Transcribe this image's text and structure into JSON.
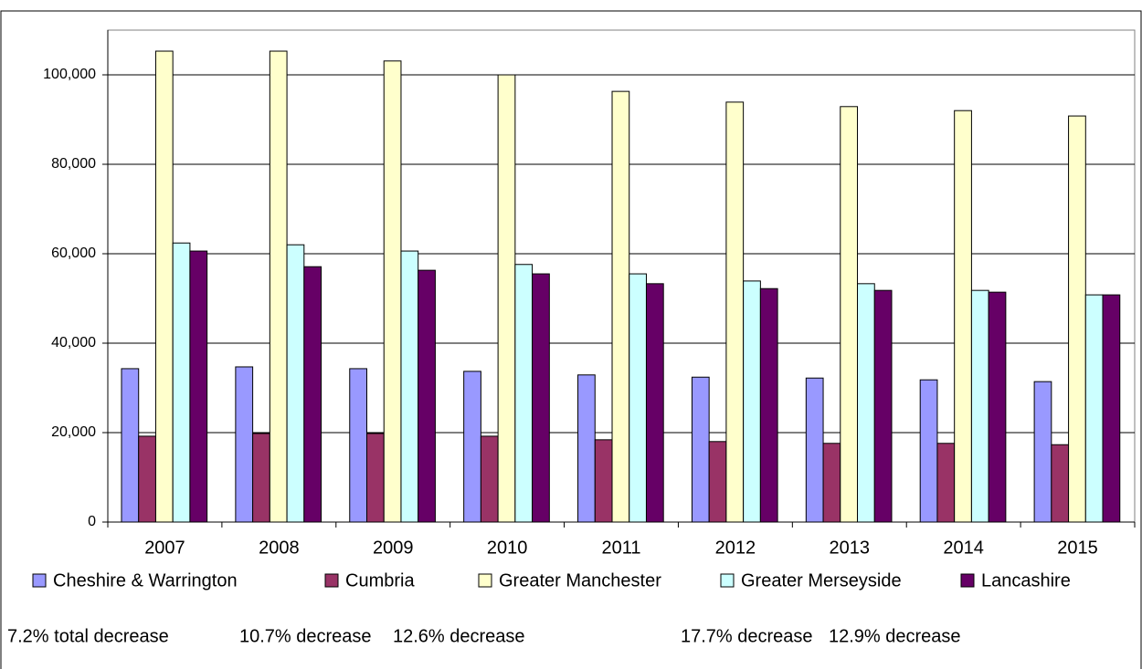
{
  "chart_data": {
    "type": "bar",
    "categories": [
      "2007",
      "2008",
      "2009",
      "2010",
      "2011",
      "2012",
      "2013",
      "2014",
      "2015"
    ],
    "series": [
      {
        "name": "Cheshire & Warrington",
        "color": "#9999ff",
        "values": [
          34300,
          34700,
          34300,
          33700,
          32900,
          32400,
          32200,
          31800,
          31400
        ]
      },
      {
        "name": "Cumbria",
        "color": "#993366",
        "values": [
          19200,
          19800,
          19800,
          19200,
          18400,
          18000,
          17600,
          17600,
          17300
        ]
      },
      {
        "name": "Greater Manchester",
        "color": "#ffffcc",
        "values": [
          105300,
          105300,
          103100,
          100000,
          96300,
          93900,
          92900,
          92000,
          90800
        ]
      },
      {
        "name": "Greater Merseyside",
        "color": "#ccffff",
        "values": [
          62400,
          62000,
          60600,
          57600,
          55500,
          53900,
          53300,
          51800,
          50800
        ]
      },
      {
        "name": "Lancashire",
        "color": "#660066",
        "values": [
          60600,
          57100,
          56300,
          55500,
          53300,
          52200,
          51800,
          51400,
          50800
        ]
      }
    ],
    "ylim": [
      0,
      110000
    ],
    "yticks": [
      0,
      {
        "value": 20000,
        "label": "20,000"
      },
      {
        "value": 40000,
        "label": "40,000"
      },
      {
        "value": 60000,
        "label": "60,000"
      },
      {
        "value": 80000,
        "label": "80,000"
      },
      {
        "value": 100000,
        "label": "100,000"
      }
    ],
    "grid": true,
    "legend": "bottom",
    "annotations": [
      "7.2% total decrease",
      "10.7% decrease",
      "12.6% decrease",
      "17.7% decrease",
      "12.9% decrease"
    ]
  }
}
